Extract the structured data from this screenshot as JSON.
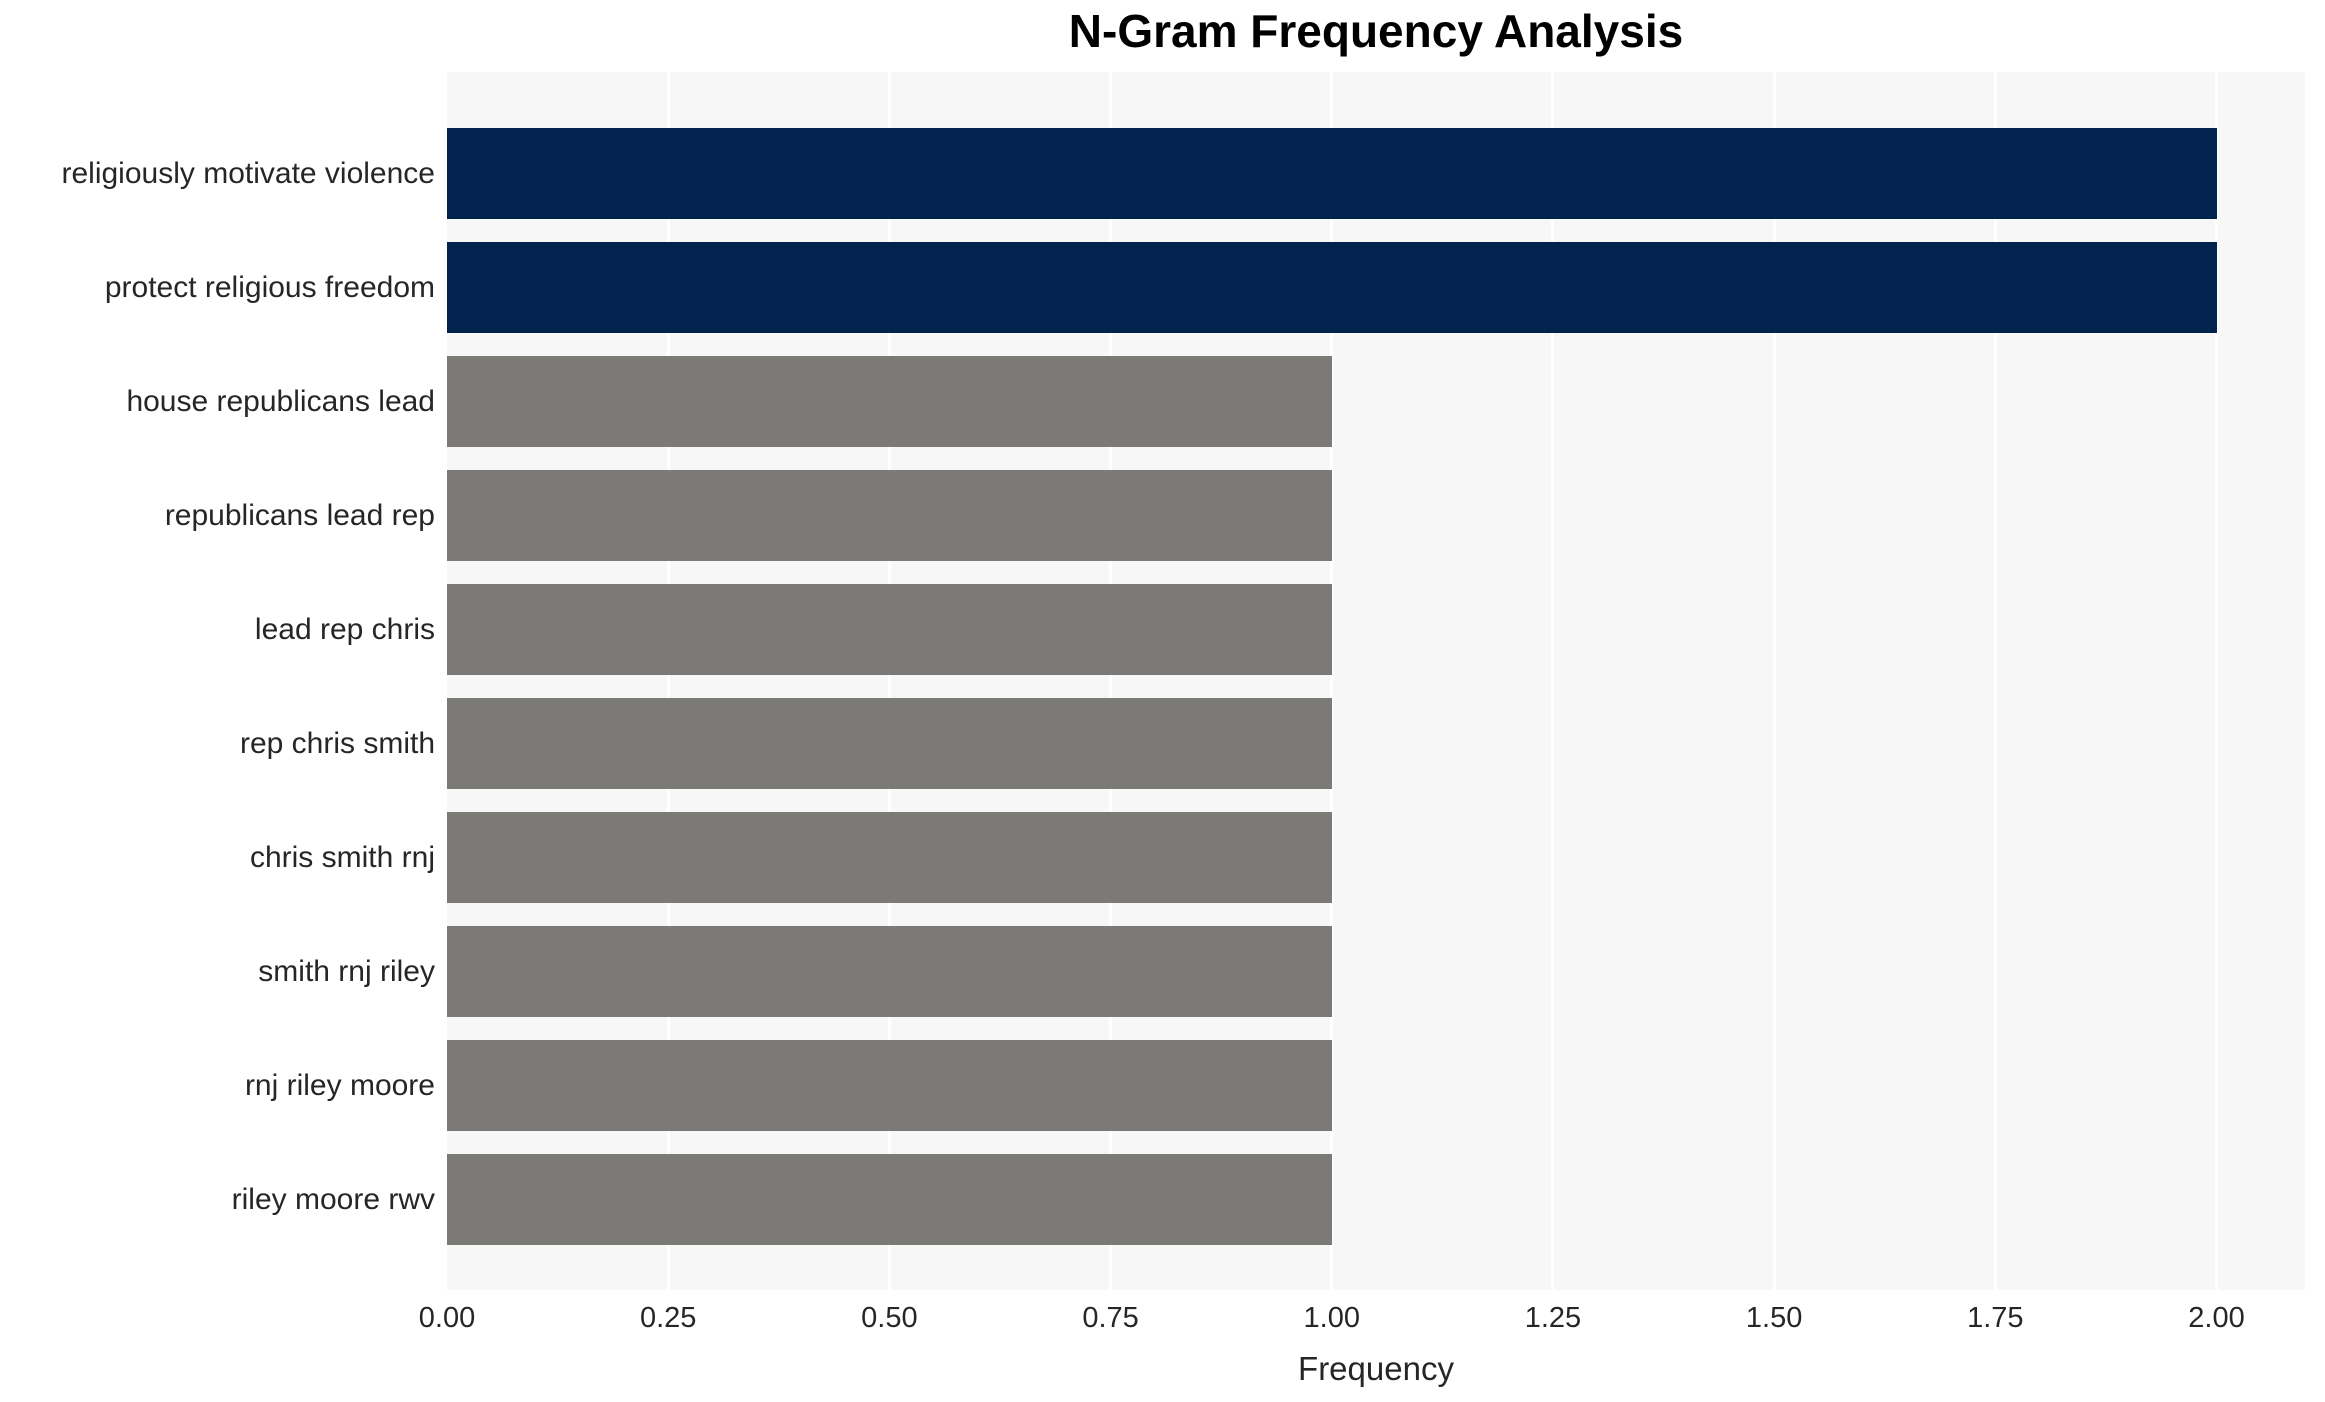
{
  "chart_data": {
    "type": "bar",
    "orientation": "horizontal",
    "title": "N-Gram Frequency Analysis",
    "xlabel": "Frequency",
    "ylabel": "",
    "categories": [
      "religiously motivate violence",
      "protect religious freedom",
      "house republicans lead",
      "republicans lead rep",
      "lead rep chris",
      "rep chris smith",
      "chris smith rnj",
      "smith rnj riley",
      "rnj riley moore",
      "riley moore rwv"
    ],
    "values": [
      2,
      2,
      1,
      1,
      1,
      1,
      1,
      1,
      1,
      1
    ],
    "bar_colors": [
      "#02234d",
      "#02234d",
      "#7b7a77",
      "#7b7a77",
      "#7b7a77",
      "#7b7a77",
      "#7b7a77",
      "#7b7a77",
      "#7b7a77",
      "#7b7a77"
    ],
    "xlim": [
      0,
      2.1
    ],
    "xticks": [
      {
        "value": 0.0,
        "label": "0.00"
      },
      {
        "value": 0.25,
        "label": "0.25"
      },
      {
        "value": 0.5,
        "label": "0.50"
      },
      {
        "value": 0.75,
        "label": "0.75"
      },
      {
        "value": 1.0,
        "label": "1.00"
      },
      {
        "value": 1.25,
        "label": "1.25"
      },
      {
        "value": 1.5,
        "label": "1.50"
      },
      {
        "value": 1.75,
        "label": "1.75"
      },
      {
        "value": 2.0,
        "label": "2.00"
      }
    ],
    "grid": true,
    "gridline_color": "#ffffff",
    "plot_background": "#f7f7f7",
    "legend_position": "none"
  }
}
